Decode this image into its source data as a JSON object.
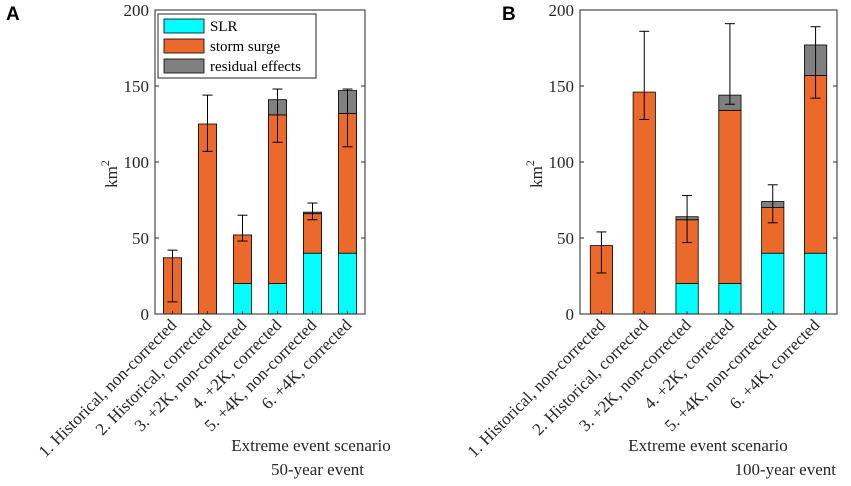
{
  "colors": {
    "slr": "#00FFFF",
    "storm_surge": "#EB6A2B",
    "residual": "#808080",
    "axis": "#262626"
  },
  "legend": {
    "slr": "SLR",
    "storm_surge": "storm surge",
    "residual": "residual effects"
  },
  "chart_data": [
    {
      "type": "bar",
      "stacked": true,
      "panel_label": "A",
      "categories": [
        "1. Historical, non-corrected",
        "2. Historical, corrected",
        "3. +2K, non-corrected",
        "4. +2K, corrected",
        "5. +4K, non-corrected",
        "6. +4K, corrected"
      ],
      "series": [
        {
          "name": "SLR",
          "values": [
            0,
            0,
            20,
            20,
            40,
            40
          ]
        },
        {
          "name": "storm surge",
          "values": [
            37,
            125,
            32,
            111,
            26,
            92
          ]
        },
        {
          "name": "residual effects",
          "values": [
            0,
            0,
            0,
            10,
            1,
            15
          ]
        }
      ],
      "error_bars": [
        {
          "low": 8,
          "high": 42
        },
        {
          "low": 107,
          "high": 144
        },
        {
          "low": 48,
          "high": 65
        },
        {
          "low": 113,
          "high": 148
        },
        {
          "low": 62,
          "high": 73
        },
        {
          "low": 110,
          "high": 148
        }
      ],
      "xlabel": "Extreme event scenario",
      "subtitle": "50-year event",
      "ylabel_base": "km",
      "ylabel_exp": "2",
      "ylim": [
        0,
        200
      ],
      "yticks": [
        0,
        50,
        100,
        150,
        200
      ],
      "legend_position": "top-left"
    },
    {
      "type": "bar",
      "stacked": true,
      "panel_label": "B",
      "categories": [
        "1. Historical, non-corrected",
        "2. Historical, corrected",
        "3. +2K, non-corrected",
        "4. +2K, corrected",
        "5. +4K, non-corrected",
        "6. +4K, corrected"
      ],
      "series": [
        {
          "name": "SLR",
          "values": [
            0,
            0,
            20,
            20,
            40,
            40
          ]
        },
        {
          "name": "storm surge",
          "values": [
            45,
            146,
            42,
            114,
            30,
            117
          ]
        },
        {
          "name": "residual effects",
          "values": [
            0,
            0,
            2,
            10,
            4,
            20
          ]
        }
      ],
      "error_bars": [
        {
          "low": 27,
          "high": 54
        },
        {
          "low": 128,
          "high": 186
        },
        {
          "low": 47,
          "high": 78
        },
        {
          "low": 138,
          "high": 191
        },
        {
          "low": 60,
          "high": 85
        },
        {
          "low": 142,
          "high": 189
        }
      ],
      "xlabel": "Extreme event scenario",
      "subtitle": "100-year event",
      "ylabel_base": "km",
      "ylabel_exp": "2",
      "ylim": [
        0,
        200
      ],
      "yticks": [
        0,
        50,
        100,
        150,
        200
      ],
      "legend_position": "none"
    }
  ]
}
